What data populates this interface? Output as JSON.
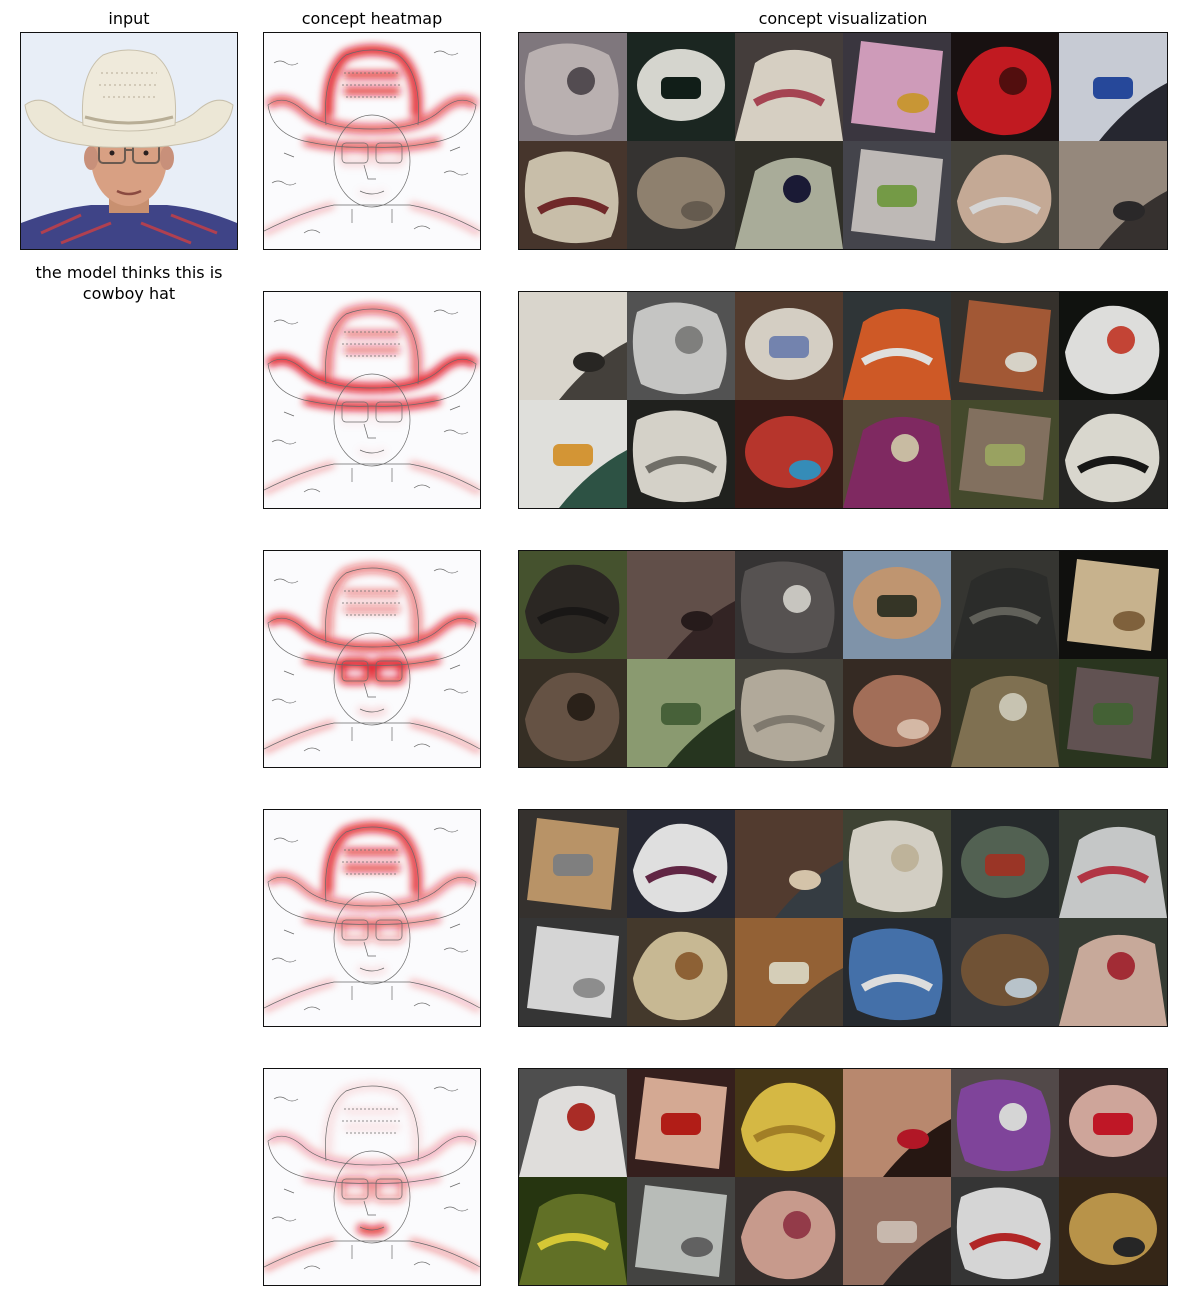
{
  "titles": {
    "input": "input",
    "heatmap": "concept heatmap",
    "visualization": "concept visualization"
  },
  "caption": "the model thinks this is cowboy hat",
  "colors": {
    "heat": "#e0121b",
    "sketch": "#6a6a6a",
    "hat": "#ece7d6",
    "shirt": "#3f4487",
    "background": "#e8eef7"
  },
  "rows": [
    {
      "heat": {
        "crown": 0.9,
        "brim": 0.7,
        "eyes": 0.15,
        "mouth": 0.05,
        "edge": 0.3
      },
      "tiles": [
        {
          "bg": "#8a8288",
          "fg": "#c9bfbf",
          "alt": "#5b5358"
        },
        {
          "bg": "#1e2a24",
          "fg": "#e8e8e0",
          "alt": "#13211b"
        },
        {
          "bg": "#4a4340",
          "fg": "#e9e1d3",
          "alt": "#b34a5a"
        },
        {
          "bg": "#3f3b45",
          "fg": "#e0a9c9",
          "alt": "#d9a33a"
        },
        {
          "bg": "#1b1313",
          "fg": "#d21d24",
          "alt": "#5a1010"
        },
        {
          "bg": "#2a2b35",
          "fg": "#d8dde6",
          "alt": "#2a4fa8"
        },
        {
          "bg": "#4c3a30",
          "fg": "#d9cfb8",
          "alt": "#7a2d2d"
        },
        {
          "bg": "#3a3836",
          "fg": "#9b8b78",
          "alt": "#6e6356"
        },
        {
          "bg": "#35342c",
          "fg": "#b8bba7",
          "alt": "#1d1d3a"
        },
        {
          "bg": "#4a4a52",
          "fg": "#cfc9c6",
          "alt": "#7ea84c"
        },
        {
          "bg": "#4a4840",
          "fg": "#d5b8a2",
          "alt": "#e8e8e8"
        },
        {
          "bg": "#3b3634",
          "fg": "#a29487",
          "alt": "#2e2c2d"
        }
      ]
    },
    {
      "heat": {
        "crown": 0.6,
        "brim": 0.95,
        "eyes": 0.05,
        "mouth": 0.05,
        "edge": 0.35
      },
      "tiles": [
        {
          "bg": "#4a4640",
          "fg": "#ece8de",
          "alt": "#2c2a26"
        },
        {
          "bg": "#5a5a5a",
          "fg": "#d6d6d4",
          "alt": "#8a8a88"
        },
        {
          "bg": "#5a4032",
          "fg": "#e7e0d4",
          "alt": "#7d8fbd"
        },
        {
          "bg": "#343a3c",
          "fg": "#e0612a",
          "alt": "#f2f2f0"
        },
        {
          "bg": "#3a3630",
          "fg": "#b0603a",
          "alt": "#e9e4d8"
        },
        {
          "bg": "#121411",
          "fg": "#f0f0ee",
          "alt": "#d44a3a"
        },
        {
          "bg": "#315a4a",
          "fg": "#f2f2ee",
          "alt": "#e5a23a"
        },
        {
          "bg": "#232421",
          "fg": "#e6e3da",
          "alt": "#7a7870"
        },
        {
          "bg": "#3a1e1a",
          "fg": "#c63a30",
          "alt": "#3a98c8"
        },
        {
          "bg": "#5e503c",
          "fg": "#8a2d6a",
          "alt": "#d9cbb0"
        },
        {
          "bg": "#4a5030",
          "fg": "#8e7a68",
          "alt": "#a7b06a"
        },
        {
          "bg": "#292927",
          "fg": "#eceae0",
          "alt": "#1a1a18"
        }
      ]
    },
    {
      "heat": {
        "crown": 0.5,
        "brim": 0.8,
        "eyes": 0.85,
        "mouth": 0.15,
        "edge": 0.4
      },
      "tiles": [
        {
          "bg": "#4b5a32",
          "fg": "#2f2b27",
          "alt": "#1c1a18"
        },
        {
          "bg": "#382828",
          "fg": "#6a5650",
          "alt": "#2a1e1e"
        },
        {
          "bg": "#3a3838",
          "fg": "#5e5a58",
          "alt": "#d8d6d0"
        },
        {
          "bg": "#8aa0b8",
          "fg": "#d0a27a",
          "alt": "#3a3a2a"
        },
        {
          "bg": "#3a3a36",
          "fg": "#2f302e",
          "alt": "#6a6a62"
        },
        {
          "bg": "#121210",
          "fg": "#d8c29a",
          "alt": "#8a6a42"
        },
        {
          "bg": "#3a3228",
          "fg": "#6e5a4a",
          "alt": "#2e241c"
        },
        {
          "bg": "#2a3a22",
          "fg": "#96a87a",
          "alt": "#4e6a3e"
        },
        {
          "bg": "#4a4840",
          "fg": "#c0b8a8",
          "alt": "#8a8478"
        },
        {
          "bg": "#3a2e26",
          "fg": "#b07860",
          "alt": "#e6c8b4"
        },
        {
          "bg": "#3a3a28",
          "fg": "#8a7a58",
          "alt": "#d8d4c0"
        },
        {
          "bg": "#2e3a22",
          "fg": "#6a5a5a",
          "alt": "#4a6a3a"
        }
      ]
    },
    {
      "heat": {
        "crown": 0.85,
        "brim": 0.55,
        "eyes": 0.35,
        "mouth": 0.1,
        "edge": 0.3
      },
      "tiles": [
        {
          "bg": "#3a3632",
          "fg": "#c8a070",
          "alt": "#8a8a8a"
        },
        {
          "bg": "#2a2c38",
          "fg": "#f2f2f2",
          "alt": "#6a2a4a"
        },
        {
          "bg": "#3a4248",
          "fg": "#5a4034",
          "alt": "#e6d4b8"
        },
        {
          "bg": "#444838",
          "fg": "#e4e0d4",
          "alt": "#cfc3a8"
        },
        {
          "bg": "#2a2e30",
          "fg": "#5a6a5a",
          "alt": "#a83a2a"
        },
        {
          "bg": "#3a4038",
          "fg": "#d6d8d8",
          "alt": "#c03a4a"
        },
        {
          "bg": "#3a3a3a",
          "fg": "#e8e8e8",
          "alt": "#9a9a9a"
        },
        {
          "bg": "#4a3e30",
          "fg": "#d8c8a0",
          "alt": "#9a6a3a"
        },
        {
          "bg": "#4a4036",
          "fg": "#a06a3a",
          "alt": "#e8e0c8"
        },
        {
          "bg": "#2a2e34",
          "fg": "#4a7ab8",
          "alt": "#f0f0f0"
        },
        {
          "bg": "#3a3c40",
          "fg": "#7a5a3a",
          "alt": "#c8d4dc"
        },
        {
          "bg": "#3a4038",
          "fg": "#d8b8a8",
          "alt": "#b0303a"
        }
      ]
    },
    {
      "heat": {
        "crown": 0.1,
        "brim": 0.3,
        "eyes": 0.4,
        "mouth": 0.9,
        "edge": 0.45
      },
      "tiles": [
        {
          "bg": "#555555",
          "fg": "#f2f0ee",
          "alt": "#b8302a"
        },
        {
          "bg": "#3a2220",
          "fg": "#e6b8a0",
          "alt": "#c0201a"
        },
        {
          "bg": "#4a3a1a",
          "fg": "#e8c84a",
          "alt": "#b08a2a"
        },
        {
          "bg": "#2a1a14",
          "fg": "#c89478",
          "alt": "#c01a2a"
        },
        {
          "bg": "#5a5050",
          "fg": "#8a4aa8",
          "alt": "#e8e8e8"
        },
        {
          "bg": "#3a2a2a",
          "fg": "#e0b4a8",
          "alt": "#d01a2a"
        },
        {
          "bg": "#2a3a12",
          "fg": "#6a7a2a",
          "alt": "#e8d83a"
        },
        {
          "bg": "#4a4a48",
          "fg": "#c8ccc8",
          "alt": "#6a6a6a"
        },
        {
          "bg": "#3a3230",
          "fg": "#d8a898",
          "alt": "#a04050"
        },
        {
          "bg": "#2e2826",
          "fg": "#a07868",
          "alt": "#d8c8bc"
        },
        {
          "bg": "#3a3a3a",
          "fg": "#e8e8e8",
          "alt": "#c02a2a"
        },
        {
          "bg": "#3a2a1a",
          "fg": "#c8a050",
          "alt": "#2a2a2a"
        }
      ]
    }
  ]
}
